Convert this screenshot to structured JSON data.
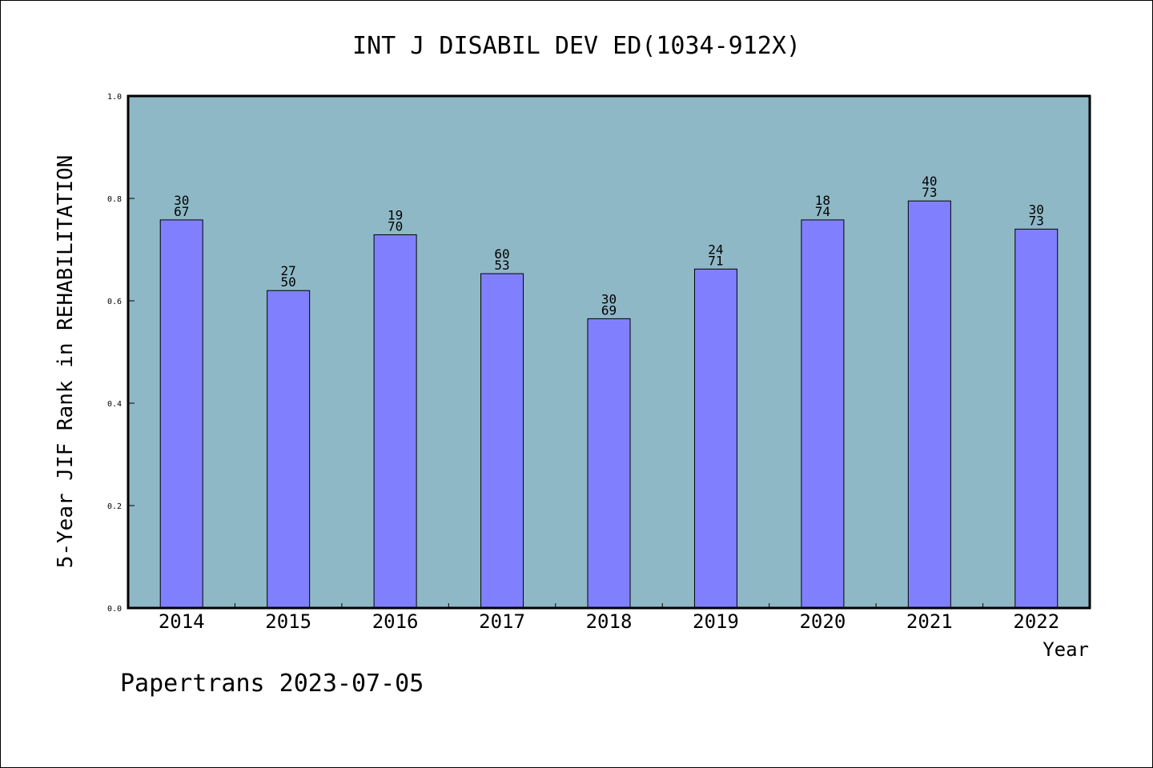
{
  "chart_data": {
    "type": "bar",
    "title": "INT J DISABIL DEV ED(1034-912X)",
    "xlabel": "Year",
    "ylabel": "5-Year JIF Rank in REHABILITATION",
    "ylim": [
      0,
      1.0
    ],
    "yticks": [
      "0.0",
      "0.2",
      "0.4",
      "0.6",
      "0.8",
      "1.0"
    ],
    "categories": [
      "2014",
      "2015",
      "2016",
      "2017",
      "2018",
      "2019",
      "2020",
      "2021",
      "2022"
    ],
    "values": [
      0.758,
      0.62,
      0.729,
      0.653,
      0.565,
      0.662,
      0.758,
      0.795,
      0.74
    ],
    "labels": [
      [
        "30",
        "67"
      ],
      [
        "27",
        "50"
      ],
      [
        "19",
        "70"
      ],
      [
        "60",
        "53"
      ],
      [
        "30",
        "69"
      ],
      [
        "24",
        "71"
      ],
      [
        "18",
        "74"
      ],
      [
        "40",
        "73"
      ],
      [
        "30",
        "73"
      ]
    ],
    "grid": false,
    "colors": {
      "plot_background": "#8fb8c6",
      "bar": "#8080ff"
    }
  },
  "footer": "Papertrans 2023-07-05"
}
